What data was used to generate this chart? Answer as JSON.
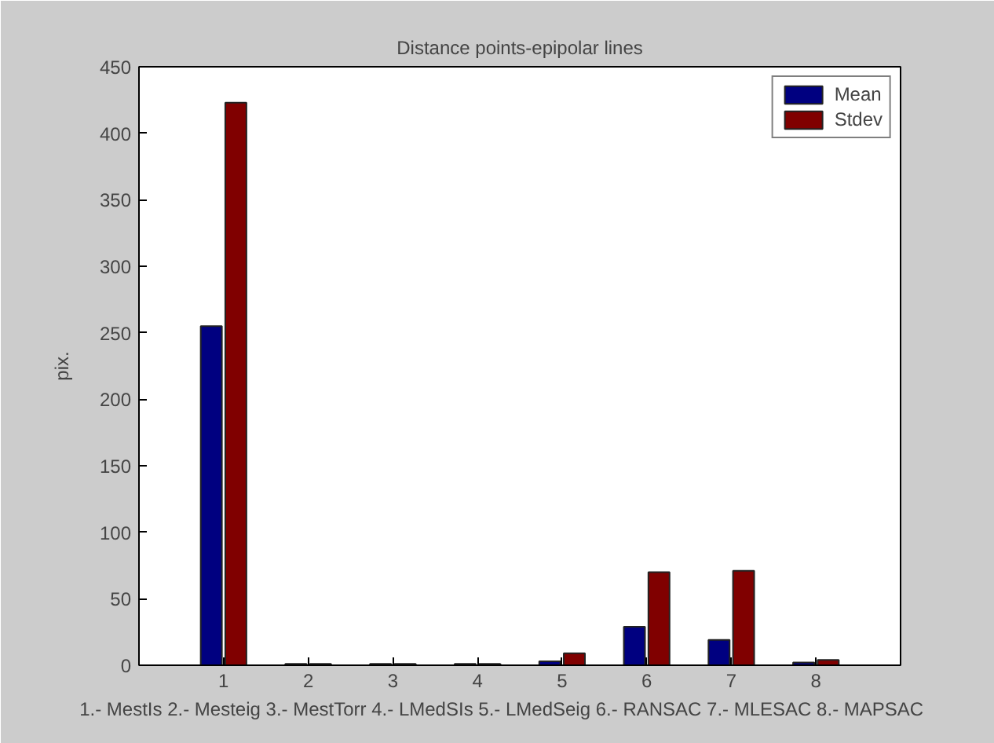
{
  "chart_data": {
    "type": "bar",
    "title": "Distance points-epipolar lines",
    "xlabel": "1.- MestIs  2.- Mesteig  3.- MestTorr  4.- LMedSIs  5.- LMedSeig  6.- RANSAC  7.- MLESAC  8.- MAPSAC",
    "ylabel": "pix.",
    "categories": [
      "1",
      "2",
      "3",
      "4",
      "5",
      "6",
      "7",
      "8"
    ],
    "series": [
      {
        "name": "Mean",
        "color": "#000080",
        "values": [
          255,
          1,
          1,
          1,
          3,
          29,
          19,
          2
        ]
      },
      {
        "name": "Stdev",
        "color": "#800000",
        "values": [
          423,
          1,
          1,
          1,
          9,
          70,
          71,
          4
        ]
      }
    ],
    "ylim": [
      0,
      450
    ],
    "yticks": [
      0,
      50,
      100,
      150,
      200,
      250,
      300,
      350,
      400,
      450
    ],
    "grid": false,
    "legend": "top right"
  }
}
